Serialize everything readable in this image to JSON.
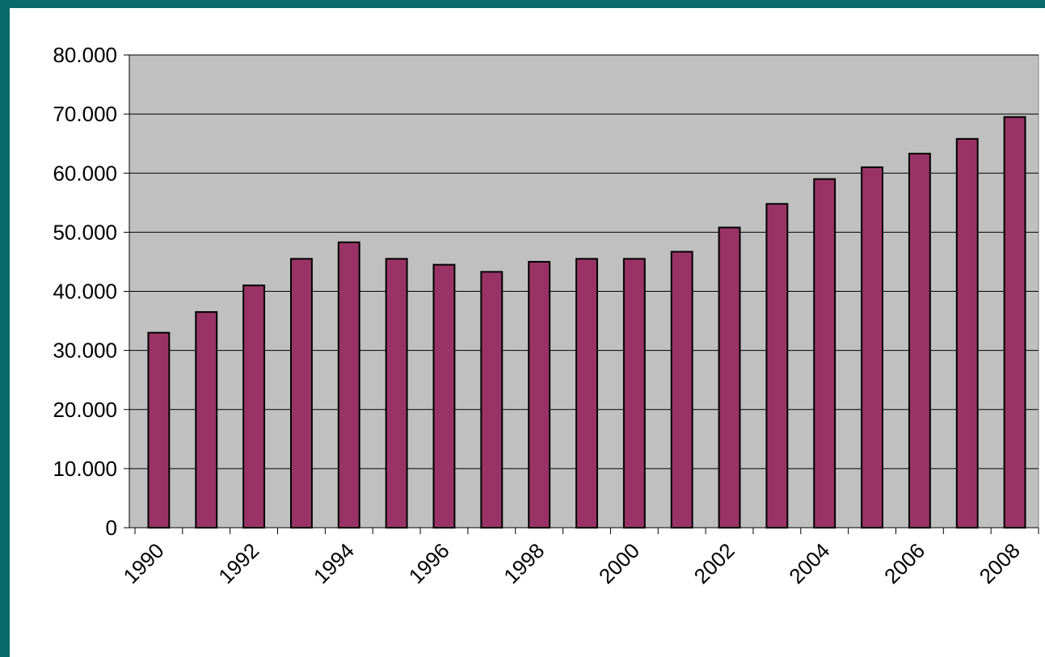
{
  "chart_data": {
    "type": "bar",
    "categories": [
      "1990",
      null,
      "1992",
      null,
      "1994",
      null,
      "1996",
      null,
      "1998",
      null,
      "2000",
      null,
      "2002",
      null,
      "2004",
      null,
      "2006",
      null,
      "2008"
    ],
    "values": [
      33000,
      36500,
      41000,
      45500,
      48300,
      45500,
      44500,
      43300,
      45000,
      45500,
      45500,
      46700,
      50800,
      54800,
      59000,
      61000,
      63300,
      65800,
      69500
    ],
    "color": "#993366",
    "ylim": [
      0,
      80000
    ],
    "yticks": [
      0,
      {
        "value": 10000,
        "label": "10.000"
      },
      {
        "value": 20000,
        "label": "20.000"
      },
      {
        "value": 30000,
        "label": "30.000"
      },
      {
        "value": 40000,
        "label": "40.000"
      },
      {
        "value": 50000,
        "label": "50.000"
      },
      {
        "value": 60000,
        "label": "60.000"
      },
      {
        "value": 70000,
        "label": "70.000"
      },
      {
        "value": 80000,
        "label": "80.000"
      }
    ],
    "grid": true
  }
}
